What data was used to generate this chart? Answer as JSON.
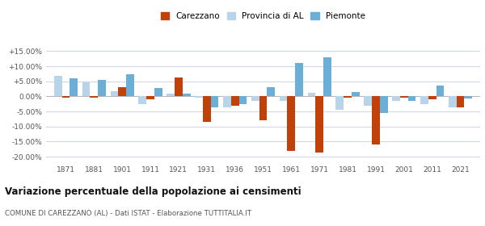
{
  "years": [
    "1871",
    "1881",
    "1901",
    "1911",
    "1921",
    "1931",
    "1936",
    "1951",
    "1961",
    "1971",
    "1981",
    "1991",
    "2001",
    "2011",
    "2021"
  ],
  "carezzano": [
    -0.5,
    -0.5,
    3.0,
    -1.0,
    6.2,
    -8.5,
    -3.0,
    -8.0,
    -18.0,
    -18.5,
    -0.5,
    -16.0,
    -0.5,
    -1.0,
    -3.5
  ],
  "provincia_al": [
    6.8,
    4.8,
    1.8,
    -2.5,
    0.8,
    -0.3,
    -3.5,
    -1.5,
    -1.5,
    1.2,
    -4.5,
    -3.0,
    -1.5,
    -2.5,
    -3.5
  ],
  "piemonte": [
    6.1,
    5.4,
    7.3,
    2.8,
    1.0,
    -3.5,
    -2.5,
    3.0,
    11.0,
    13.0,
    1.5,
    -5.5,
    -1.5,
    3.5,
    -0.8
  ],
  "carezzano_color": "#c0420a",
  "provincia_color": "#b8d4ea",
  "piemonte_color": "#6baed6",
  "bg_color": "#ffffff",
  "grid_color": "#d0d8e8",
  "title": "Variazione percentuale della popolazione ai censimenti",
  "subtitle": "COMUNE DI CAREZZANO (AL) - Dati ISTAT - Elaborazione TUTTITALIA.IT",
  "ylim": [
    -22,
    17
  ],
  "yticks": [
    -20.0,
    -15.0,
    -10.0,
    -5.0,
    0.0,
    5.0,
    10.0,
    15.0
  ],
  "ytick_labels": [
    "-20.00%",
    "-15.00%",
    "-10.00%",
    "-5.00%",
    "0.00%",
    "+5.00%",
    "+10.00%",
    "+15.00%"
  ]
}
